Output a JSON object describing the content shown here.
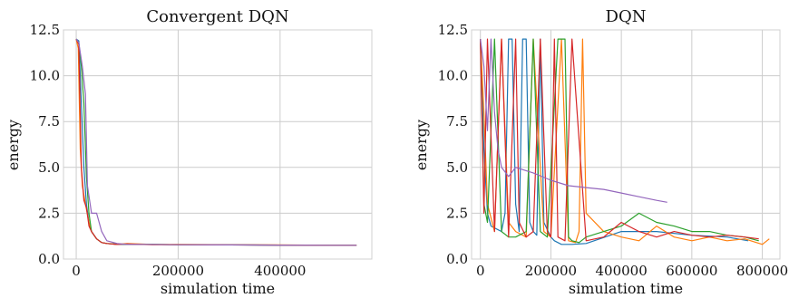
{
  "chart_data": [
    {
      "type": "line",
      "title": "Convergent DQN",
      "xlabel": "simulation time",
      "ylabel": "energy",
      "xlim": [
        -25000,
        580000
      ],
      "ylim": [
        0,
        12.5
      ],
      "xticks": [
        0,
        200000,
        400000
      ],
      "xtick_labels": [
        "0",
        "200000",
        "400000"
      ],
      "yticks": [
        0,
        2.5,
        5,
        7.5,
        10,
        12.5
      ],
      "ytick_labels": [
        "0.0",
        "2.5",
        "5.0",
        "7.5",
        "10.0",
        "12.5"
      ],
      "grid": true,
      "series": [
        {
          "color": "#1f77b4",
          "x": [
            0,
            5000,
            10000,
            15000,
            20000,
            25000,
            30000,
            40000,
            50000,
            60000,
            80000,
            100000,
            150000,
            200000,
            300000,
            400000,
            500000,
            550000
          ],
          "y": [
            12.0,
            11.9,
            8.5,
            5.0,
            3.0,
            2.0,
            1.5,
            1.1,
            0.9,
            0.85,
            0.8,
            0.8,
            0.8,
            0.78,
            0.78,
            0.75,
            0.75,
            0.75
          ]
        },
        {
          "color": "#ff7f0e",
          "x": [
            0,
            4000,
            8000,
            12000,
            18000,
            25000,
            30000,
            40000,
            50000,
            60000,
            80000,
            100000,
            150000,
            200000,
            300000,
            400000,
            500000,
            550000
          ],
          "y": [
            12.0,
            11.5,
            6.0,
            4.0,
            3.0,
            2.0,
            1.5,
            1.1,
            0.9,
            0.85,
            0.8,
            0.85,
            0.8,
            0.8,
            0.78,
            0.77,
            0.75,
            0.75
          ]
        },
        {
          "color": "#2ca02c",
          "x": [
            0,
            5000,
            10000,
            15000,
            20000,
            25000,
            30000,
            40000,
            50000,
            60000,
            80000,
            100000,
            150000,
            200000,
            300000,
            400000,
            500000,
            550000
          ],
          "y": [
            12.0,
            11.8,
            10.5,
            8.5,
            4.5,
            2.5,
            1.5,
            1.1,
            0.9,
            0.85,
            0.82,
            0.8,
            0.8,
            0.78,
            0.77,
            0.76,
            0.75,
            0.75
          ]
        },
        {
          "color": "#d62728",
          "x": [
            0,
            5000,
            10000,
            15000,
            20000,
            25000,
            30000,
            40000,
            50000,
            60000,
            80000,
            100000,
            150000,
            200000,
            300000,
            400000,
            500000,
            550000
          ],
          "y": [
            12.0,
            11.7,
            5.0,
            3.2,
            2.8,
            1.8,
            1.5,
            1.1,
            0.9,
            0.85,
            0.8,
            0.82,
            0.78,
            0.78,
            0.77,
            0.76,
            0.75,
            0.75
          ]
        },
        {
          "color": "#9467bd",
          "x": [
            0,
            5000,
            12000,
            18000,
            22000,
            30000,
            40000,
            50000,
            60000,
            80000,
            100000,
            150000,
            200000,
            300000,
            400000,
            500000,
            550000
          ],
          "y": [
            12.0,
            11.8,
            10.5,
            9.0,
            4.0,
            2.5,
            2.5,
            1.5,
            1.0,
            0.85,
            0.8,
            0.8,
            0.78,
            0.77,
            0.76,
            0.75,
            0.75
          ]
        }
      ]
    },
    {
      "type": "line",
      "title": "DQN",
      "xlabel": "simulation time",
      "ylabel": "energy",
      "xlim": [
        -25000,
        850000
      ],
      "ylim": [
        0,
        12.5
      ],
      "xticks": [
        0,
        200000,
        400000,
        600000,
        800000
      ],
      "xtick_labels": [
        "0",
        "200000",
        "400000",
        "600000",
        "800000"
      ],
      "yticks": [
        0,
        2.5,
        5,
        7.5,
        10,
        12.5
      ],
      "ytick_labels": [
        "0.0",
        "2.5",
        "5.0",
        "7.5",
        "10.0",
        "12.5"
      ],
      "grid": true,
      "series": [
        {
          "color": "#1f77b4",
          "x": [
            0,
            10000,
            20000,
            30000,
            60000,
            70000,
            80000,
            90000,
            100000,
            110000,
            120000,
            130000,
            140000,
            150000,
            160000,
            170000,
            180000,
            200000,
            210000,
            230000,
            260000,
            300000,
            400000,
            500000,
            600000,
            700000,
            760000
          ],
          "y": [
            12.0,
            6.0,
            2.5,
            1.8,
            1.5,
            2.5,
            12.0,
            12.0,
            3.0,
            1.5,
            12.0,
            12.0,
            2.0,
            1.5,
            1.3,
            12.0,
            2.0,
            1.2,
            1.0,
            0.8,
            0.8,
            0.85,
            1.5,
            1.5,
            1.3,
            1.2,
            1.0
          ]
        },
        {
          "color": "#ff7f0e",
          "x": [
            0,
            10000,
            20000,
            40000,
            60000,
            80000,
            100000,
            130000,
            150000,
            180000,
            200000,
            230000,
            250000,
            270000,
            280000,
            290000,
            300000,
            350000,
            400000,
            450000,
            500000,
            550000,
            600000,
            650000,
            700000,
            750000,
            800000,
            820000
          ],
          "y": [
            12.0,
            8.0,
            3.0,
            1.5,
            12.0,
            2.0,
            1.5,
            1.2,
            12.0,
            1.5,
            1.2,
            12.0,
            1.0,
            0.9,
            1.5,
            12.0,
            2.5,
            1.5,
            1.2,
            1.0,
            1.8,
            1.2,
            1.0,
            1.2,
            1.0,
            1.1,
            0.8,
            1.1
          ]
        },
        {
          "color": "#2ca02c",
          "x": [
            0,
            10000,
            20000,
            40000,
            60000,
            80000,
            100000,
            130000,
            150000,
            170000,
            190000,
            220000,
            240000,
            250000,
            260000,
            280000,
            300000,
            350000,
            400000,
            450000,
            500000,
            550000,
            600000,
            650000,
            700000,
            750000,
            790000
          ],
          "y": [
            12.0,
            3.0,
            2.0,
            12.0,
            1.5,
            1.2,
            1.2,
            1.5,
            12.0,
            1.5,
            1.2,
            12.0,
            12.0,
            1.2,
            1.0,
            0.9,
            1.2,
            1.5,
            1.8,
            2.5,
            2.0,
            1.8,
            1.5,
            1.5,
            1.3,
            1.2,
            1.0
          ]
        },
        {
          "color": "#d62728",
          "x": [
            0,
            10000,
            20000,
            40000,
            60000,
            80000,
            100000,
            110000,
            130000,
            150000,
            170000,
            190000,
            200000,
            210000,
            220000,
            240000,
            260000,
            300000,
            350000,
            400000,
            450000,
            500000,
            550000,
            600000,
            650000,
            700000,
            750000,
            790000
          ],
          "y": [
            12.0,
            2.5,
            12.0,
            1.5,
            12.0,
            1.2,
            12.0,
            2.0,
            1.2,
            1.5,
            12.0,
            1.5,
            1.2,
            12.0,
            1.2,
            1.0,
            12.0,
            1.0,
            1.2,
            2.0,
            1.5,
            1.2,
            1.5,
            1.3,
            1.2,
            1.3,
            1.2,
            1.1
          ]
        },
        {
          "color": "#9467bd",
          "x": [
            0,
            10000,
            20000,
            30000,
            40000,
            50000,
            60000,
            80000,
            100000,
            150000,
            200000,
            250000,
            300000,
            350000,
            400000,
            450000,
            500000,
            530000
          ],
          "y": [
            12.0,
            10.5,
            7.0,
            12.0,
            8.0,
            6.0,
            5.0,
            4.5,
            5.0,
            4.7,
            4.3,
            4.0,
            3.9,
            3.8,
            3.6,
            3.4,
            3.2,
            3.1
          ]
        }
      ]
    }
  ]
}
